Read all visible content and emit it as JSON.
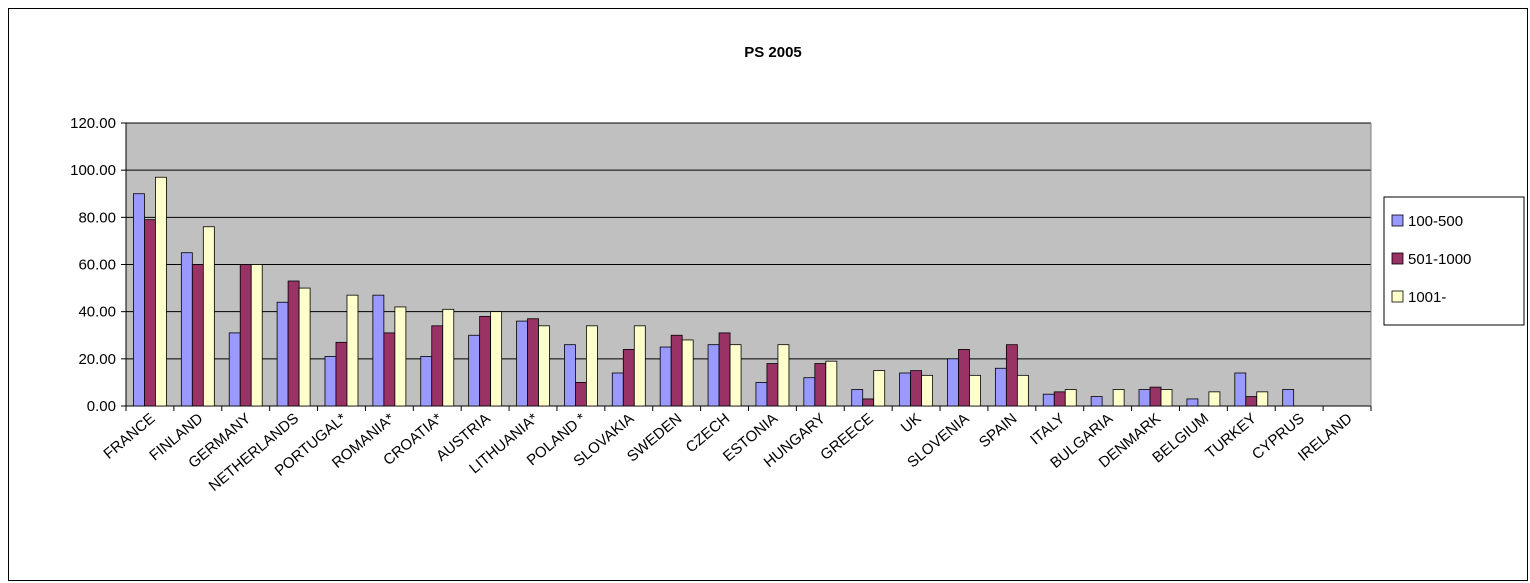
{
  "chart_data": {
    "type": "bar",
    "title": "PS 2005",
    "xlabel": "",
    "ylabel": "",
    "ylim": [
      0,
      120
    ],
    "yticks": [
      "0.00",
      "20.00",
      "40.00",
      "60.00",
      "80.00",
      "100.00",
      "120.00"
    ],
    "grid": true,
    "legend_position": "right",
    "categories": [
      "FRANCE",
      "FINLAND",
      "GERMANY",
      "NETHERLANDS",
      "PORTUGAL*",
      "ROMANIA*",
      "CROATIA*",
      "AUSTRIA",
      "LITHUANIA*",
      "POLAND *",
      "SLOVAKIA",
      "SWEDEN",
      "CZECH",
      "ESTONIA",
      "HUNGARY",
      "GREECE",
      "UK",
      "SLOVENIA",
      "SPAIN",
      "ITALY",
      "BULGARIA",
      "DENMARK",
      "BELGIUM",
      "TURKEY",
      "CYPRUS",
      "IRELAND"
    ],
    "series": [
      {
        "name": "100-500",
        "color": "#9999ff",
        "values": [
          90,
          65,
          31,
          44,
          21,
          47,
          21,
          30,
          36,
          26,
          14,
          25,
          26,
          10,
          12,
          7,
          14,
          20,
          16,
          5,
          4,
          7,
          3,
          14,
          7,
          0
        ]
      },
      {
        "name": "501-1000",
        "color": "#993366",
        "values": [
          79,
          60,
          60,
          53,
          27,
          31,
          34,
          38,
          37,
          10,
          24,
          30,
          31,
          18,
          18,
          3,
          15,
          24,
          26,
          6,
          0,
          8,
          0,
          4,
          0,
          0
        ]
      },
      {
        "name": "1001-",
        "color": "#ffffcc",
        "values": [
          97,
          76,
          60,
          50,
          47,
          42,
          41,
          40,
          34,
          34,
          34,
          28,
          26,
          26,
          19,
          15,
          13,
          13,
          13,
          7,
          7,
          7,
          6,
          6,
          0,
          0
        ]
      }
    ],
    "colors": {
      "plot_background": "#c0c0c0",
      "gridline": "#000000"
    }
  }
}
